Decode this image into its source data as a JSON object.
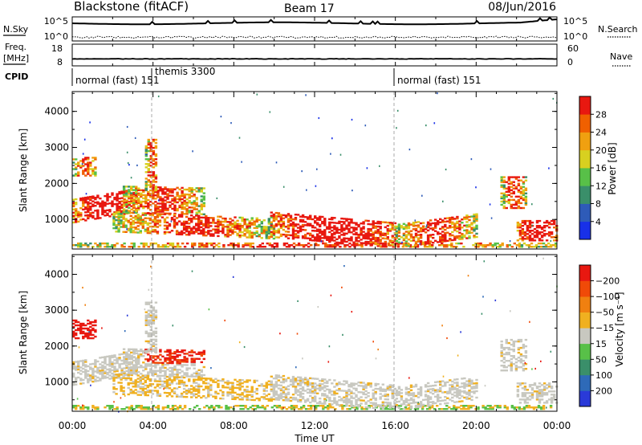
{
  "header": {
    "title": "Blackstone (fitACF)",
    "beam": "Beam 17",
    "date": "08/Jun/2016"
  },
  "summary": {
    "nsky_label": "N.Sky",
    "nsky_ticks": [
      "10^5",
      "10^0"
    ],
    "nsearch_label": "N.Search",
    "nsearch_ticks": [
      "10^5",
      "10^0"
    ],
    "freq_label": "Freq.",
    "freq_unit": "[MHz]",
    "freq_ticks": [
      "18",
      "8"
    ],
    "nave_label": "Nave",
    "nave_ticks": [
      "60",
      "0"
    ],
    "cpid_label": "CPID"
  },
  "modes": [
    {
      "label": "normal (fast) 151",
      "start_hour": 0
    },
    {
      "label": "themis 3300",
      "start_hour": 3.9
    },
    {
      "label": "normal (fast) 151",
      "start_hour": 16
    }
  ],
  "chart_data": [
    {
      "type": "heatmap",
      "name": "power",
      "xlabel": "Time UT",
      "ylabel": "Slant Range [km]",
      "xlim": [
        0,
        24
      ],
      "ylim": [
        180,
        4550
      ],
      "yticks": [
        1000,
        2000,
        3000,
        4000
      ],
      "colorbar": {
        "label": "Power [dB]",
        "ticks": [
          "4",
          "8",
          "12",
          "16",
          "20",
          "24",
          "28"
        ],
        "colors": [
          "#1830e8",
          "#2e5bb8",
          "#3a8f6a",
          "#58c048",
          "#d8d020",
          "#f0a010",
          "#f06000",
          "#e81810"
        ]
      }
    },
    {
      "type": "heatmap",
      "name": "velocity",
      "xlabel": "Time UT",
      "ylabel": "Slant Range [km]",
      "xlim": [
        0,
        24
      ],
      "ylim": [
        180,
        4550
      ],
      "yticks": [
        1000,
        2000,
        3000,
        4000
      ],
      "colorbar": {
        "label": "Velocity [m s⁻¹]",
        "ticks": [
          "200",
          "100",
          "50",
          "15",
          "−15",
          "−50",
          "−100",
          "−200"
        ],
        "colors": [
          "#2a3ad8",
          "#2e6ab8",
          "#3a8f6a",
          "#58c048",
          "#c8c8c0",
          "#f0b020",
          "#f08010",
          "#f04a08",
          "#e81810"
        ]
      }
    }
  ],
  "time_axis": {
    "ticks": [
      "00:00",
      "04:00",
      "08:00",
      "12:00",
      "16:00",
      "20:00",
      "00:00"
    ],
    "label": "Time UT"
  }
}
